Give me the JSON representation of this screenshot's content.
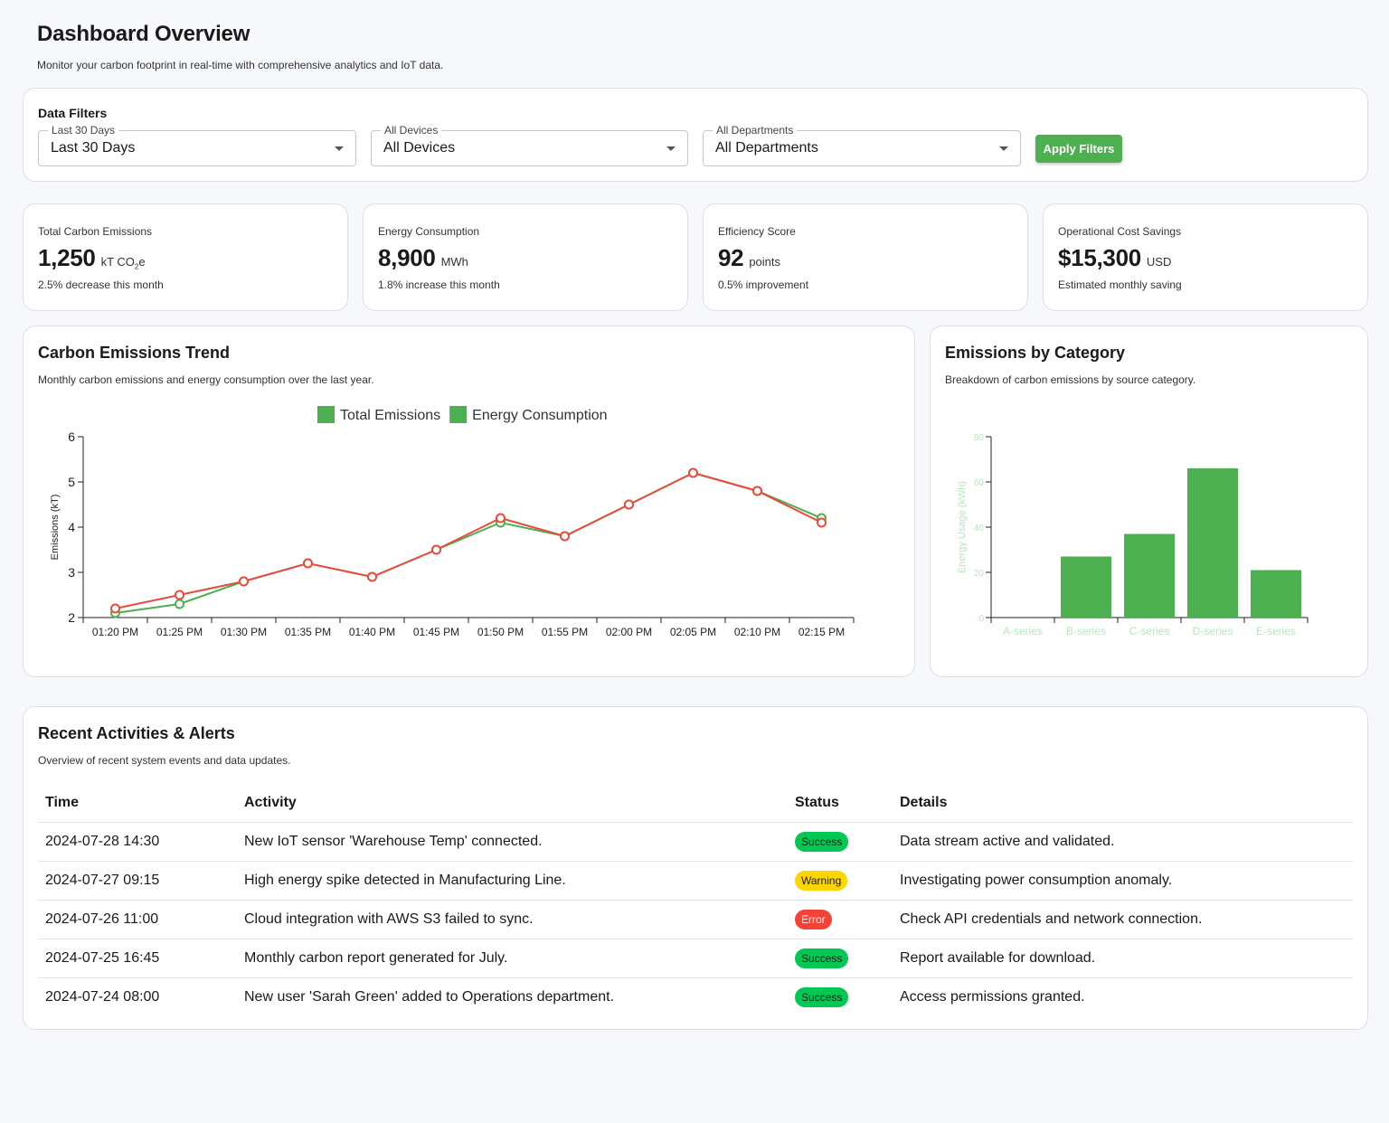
{
  "header": {
    "title": "Dashboard Overview",
    "subtitle": "Monitor your carbon footprint in real-time with comprehensive analytics and IoT data."
  },
  "filters": {
    "title": "Data Filters",
    "date": {
      "label": "Last 30 Days",
      "value": "Last 30 Days"
    },
    "devices": {
      "label": "All Devices",
      "value": "All Devices"
    },
    "departments": {
      "label": "All Departments",
      "value": "All Departments"
    },
    "apply_label": "Apply Filters"
  },
  "kpis": [
    {
      "label": "Total Carbon Emissions",
      "value": "1,250",
      "unit": "kT CO",
      "unit_sub": "2",
      "unit_tail": "e",
      "note": "2.5% decrease this month"
    },
    {
      "label": "Energy Consumption",
      "value": "8,900",
      "unit": "MWh",
      "unit_sub": "",
      "unit_tail": "",
      "note": "1.8% increase this month"
    },
    {
      "label": "Efficiency Score",
      "value": "92",
      "unit": "points",
      "unit_sub": "",
      "unit_tail": "",
      "note": "0.5% improvement"
    },
    {
      "label": "Operational Cost Savings",
      "value": "$15,300",
      "unit": "USD",
      "unit_sub": "",
      "unit_tail": "",
      "note": "Estimated monthly saving"
    }
  ],
  "trend": {
    "title": "Carbon Emissions Trend",
    "subtitle": "Monthly carbon emissions and energy consumption over the last year."
  },
  "category": {
    "title": "Emissions by Category",
    "subtitle": "Breakdown of carbon emissions by source category."
  },
  "chart_data": [
    {
      "type": "line",
      "x": [
        "01:20 PM",
        "01:25 PM",
        "01:30 PM",
        "01:35 PM",
        "01:40 PM",
        "01:45 PM",
        "01:50 PM",
        "01:55 PM",
        "02:00 PM",
        "02:05 PM",
        "02:10 PM",
        "02:15 PM"
      ],
      "series": [
        {
          "name": "Total Emissions",
          "color": "#4caf50",
          "values": [
            2.1,
            2.3,
            2.8,
            3.2,
            2.9,
            3.5,
            4.1,
            3.8,
            4.5,
            5.2,
            4.8,
            4.2
          ]
        },
        {
          "name": "Energy Consumption",
          "color": "#e74c3c",
          "values": [
            2.2,
            2.5,
            2.8,
            3.2,
            2.9,
            3.5,
            4.2,
            3.8,
            4.5,
            5.2,
            4.8,
            4.1
          ]
        }
      ],
      "legend_colors": [
        "#4caf50",
        "#4caf50"
      ],
      "ylabel": "Emissions (kT)",
      "ylim": [
        2,
        6
      ],
      "yticks": [
        "2",
        "3",
        "4",
        "5",
        "6"
      ],
      "legend": "top-center"
    },
    {
      "type": "bar",
      "categories": [
        "A-series",
        "B-series",
        "C-series",
        "D-series",
        "E-series"
      ],
      "values": [
        0,
        27,
        37,
        66,
        21
      ],
      "color": "#4caf50",
      "ylabel": "Energy Usage (kWh)",
      "ylim": [
        0,
        80
      ],
      "yticks": [
        "0",
        "20",
        "40",
        "60",
        "80"
      ]
    }
  ],
  "activities": {
    "title": "Recent Activities & Alerts",
    "subtitle": "Overview of recent system events and data updates.",
    "columns": [
      "Time",
      "Activity",
      "Status",
      "Details"
    ],
    "rows": [
      {
        "time": "2024-07-28 14:30",
        "activity": "New IoT sensor 'Warehouse Temp' connected.",
        "status": "Success",
        "kind": "success",
        "details": "Data stream active and validated."
      },
      {
        "time": "2024-07-27 09:15",
        "activity": "High energy spike detected in Manufacturing Line.",
        "status": "Warning",
        "kind": "warning",
        "details": "Investigating power consumption anomaly."
      },
      {
        "time": "2024-07-26 11:00",
        "activity": "Cloud integration with AWS S3 failed to sync.",
        "status": "Error",
        "kind": "error",
        "details": "Check API credentials and network connection."
      },
      {
        "time": "2024-07-25 16:45",
        "activity": "Monthly carbon report generated for July.",
        "status": "Success",
        "kind": "success",
        "details": "Report available for download."
      },
      {
        "time": "2024-07-24 08:00",
        "activity": "New user 'Sarah Green' added to Operations department.",
        "status": "Success",
        "kind": "success",
        "details": "Access permissions granted."
      }
    ]
  }
}
